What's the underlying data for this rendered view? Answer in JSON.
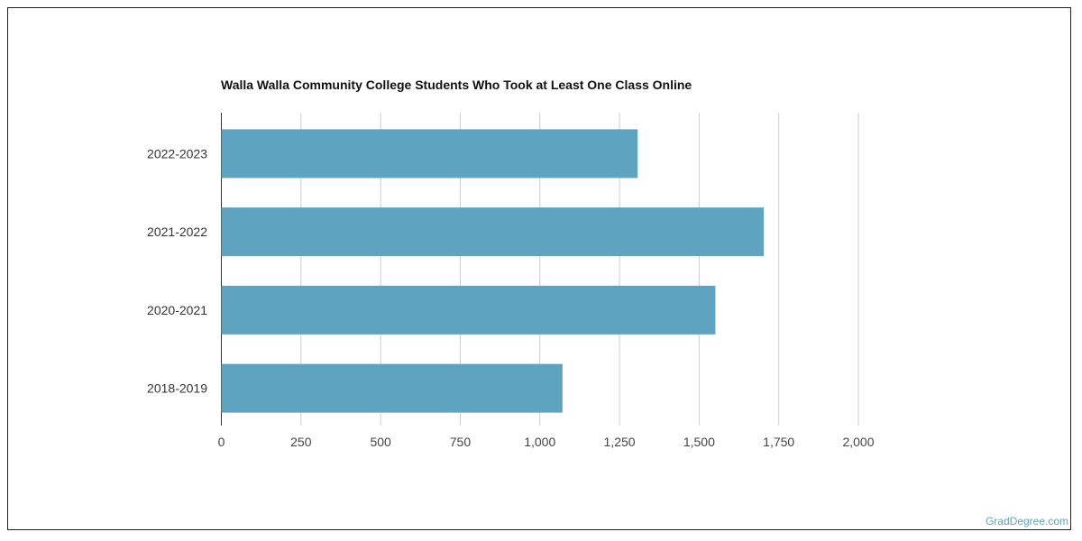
{
  "chart_data": {
    "type": "bar",
    "orientation": "horizontal",
    "title": "Walla Walla Community College Students Who Took at Least One Class Online",
    "categories": [
      "2022-2023",
      "2021-2022",
      "2020-2021",
      "2018-2019"
    ],
    "values": [
      1307,
      1703,
      1551,
      1071
    ],
    "xlabel": "",
    "ylabel": "",
    "xlim": [
      0,
      2000
    ],
    "xticks": [
      0,
      250,
      500,
      750,
      1000,
      1250,
      1500,
      1750,
      2000
    ],
    "xtick_labels": [
      "0",
      "250",
      "500",
      "750",
      "1,000",
      "1,250",
      "1,500",
      "1,750",
      "2,000"
    ],
    "grid": true,
    "bar_color": "#5ea3c0"
  },
  "credit": "GradDegree.com"
}
